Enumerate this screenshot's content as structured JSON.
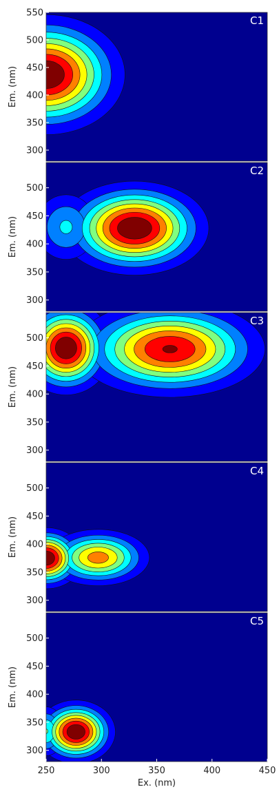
{
  "chart_data": {
    "type": "heatmap",
    "subtype": "stacked filled contour plots",
    "colormap": "jet",
    "background_color": "#00008f",
    "xlabel": "Ex. (nm)",
    "ylabel": "Em. (nm)",
    "xlim": [
      250,
      450
    ],
    "xticks": [
      250,
      300,
      350,
      400,
      450
    ],
    "contour_levels": 8,
    "shared_x_axis": true,
    "panels": [
      {
        "label": "C1",
        "ylim": [
          280,
          550
        ],
        "yticks": [
          300,
          350,
          400,
          450,
          500,
          550
        ],
        "peaks": [
          {
            "ex": 250,
            "em": 437,
            "intensity": 1.0,
            "spread_ex": 34,
            "spread_em": 52
          }
        ]
      },
      {
        "label": "C2",
        "ylim": [
          280,
          545
        ],
        "yticks": [
          300,
          350,
          400,
          450,
          500
        ],
        "peaks": [
          {
            "ex": 330,
            "em": 428,
            "intensity": 1.0,
            "spread_ex": 32,
            "spread_em": 40
          },
          {
            "ex": 268,
            "em": 430,
            "intensity": 0.35,
            "spread_ex": 18,
            "spread_em": 38
          }
        ]
      },
      {
        "label": "C3",
        "ylim": [
          280,
          545
        ],
        "yticks": [
          300,
          350,
          400,
          450,
          500
        ],
        "peaks": [
          {
            "ex": 268,
            "em": 482,
            "intensity": 1.0,
            "spread_ex": 20,
            "spread_em": 40
          },
          {
            "ex": 362,
            "em": 480,
            "intensity": 0.9,
            "spread_ex": 42,
            "spread_em": 42
          }
        ]
      },
      {
        "label": "C4",
        "ylim": [
          280,
          545
        ],
        "yticks": [
          300,
          350,
          400,
          450,
          500
        ],
        "peaks": [
          {
            "ex": 250,
            "em": 375,
            "intensity": 1.0,
            "spread_ex": 16,
            "spread_em": 26
          },
          {
            "ex": 297,
            "em": 376,
            "intensity": 0.72,
            "spread_ex": 24,
            "spread_em": 26
          }
        ]
      },
      {
        "label": "C5",
        "ylim": [
          280,
          545
        ],
        "yticks": [
          300,
          350,
          400,
          450,
          500
        ],
        "peaks": [
          {
            "ex": 277,
            "em": 333,
            "intensity": 1.0,
            "spread_ex": 17,
            "spread_em": 27
          },
          {
            "ex": 250,
            "em": 334,
            "intensity": 0.45,
            "spread_ex": 10,
            "spread_em": 26
          }
        ]
      }
    ]
  }
}
